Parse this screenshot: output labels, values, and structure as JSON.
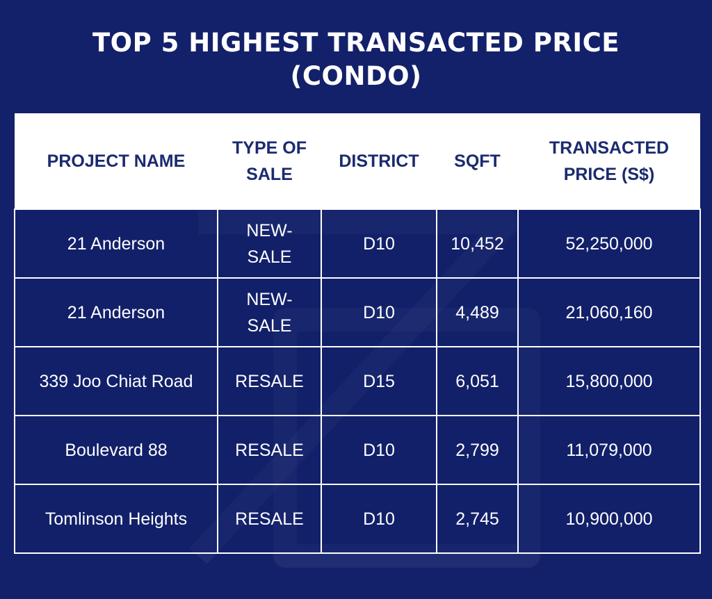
{
  "title": {
    "line1": "TOP 5 HIGHEST TRANSACTED PRICE",
    "line2": "(CONDO)"
  },
  "table": {
    "headers": [
      [
        "PROJECT NAME"
      ],
      [
        "TYPE OF",
        "SALE"
      ],
      [
        "DISTRICT"
      ],
      [
        "SQFT"
      ],
      [
        "TRANSACTED",
        "PRICE (S$)"
      ]
    ],
    "rows": [
      {
        "project": "21 Anderson",
        "sale": [
          "NEW-",
          "SALE"
        ],
        "district": "D10",
        "sqft": "10,452",
        "price": "52,250,000"
      },
      {
        "project": "21 Anderson",
        "sale": [
          "NEW-",
          "SALE"
        ],
        "district": "D10",
        "sqft": "4,489",
        "price": "21,060,160"
      },
      {
        "project": "339 Joo Chiat Road",
        "sale": [
          "RESALE"
        ],
        "district": "D15",
        "sqft": "6,051",
        "price": "15,800,000"
      },
      {
        "project": "Boulevard 88",
        "sale": [
          "RESALE"
        ],
        "district": "D10",
        "sqft": "2,799",
        "price": "11,079,000"
      },
      {
        "project": "Tomlinson Heights",
        "sale": [
          "RESALE"
        ],
        "district": "D10",
        "sqft": "2,745",
        "price": "10,900,000"
      }
    ]
  },
  "colors": {
    "background": "#13206a",
    "header_bg": "#ffffff",
    "header_text": "#1b2a6f",
    "cell_text": "#ffffff"
  }
}
